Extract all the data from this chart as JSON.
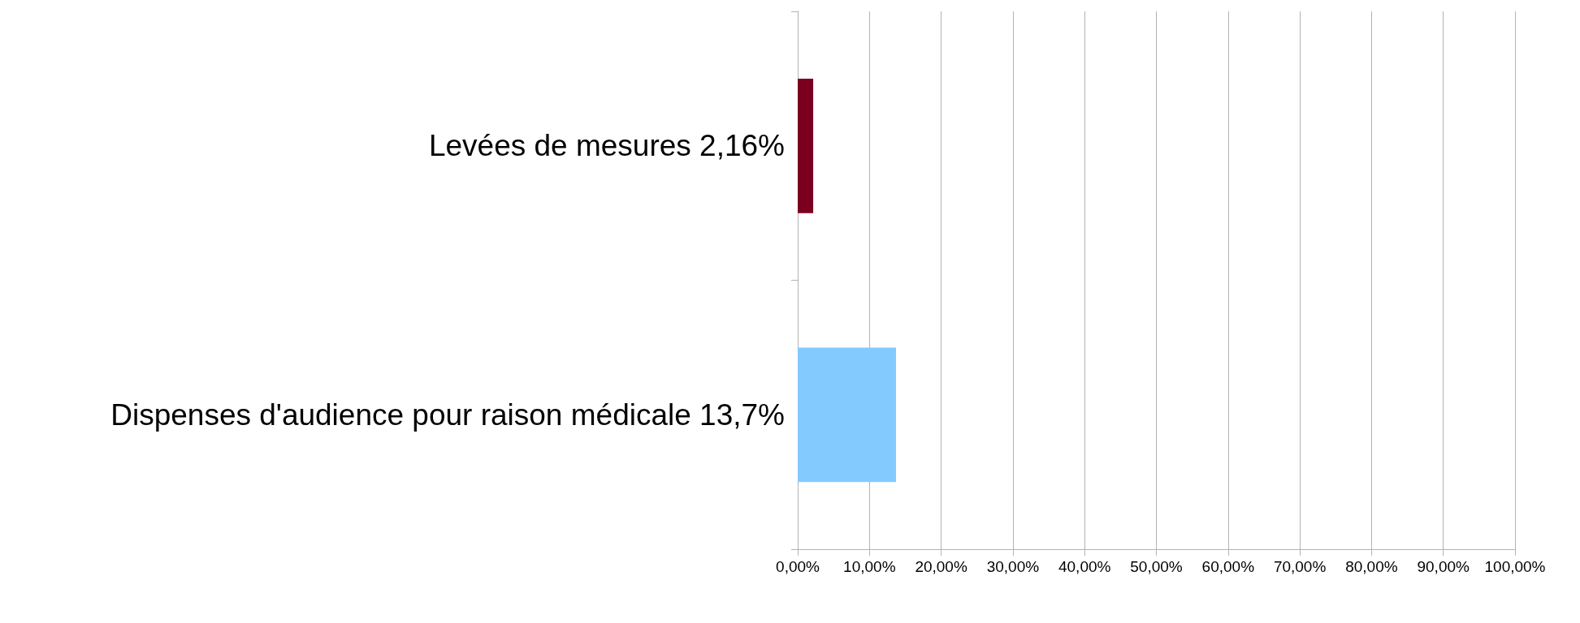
{
  "chart_data": {
    "type": "bar",
    "orientation": "horizontal",
    "categories": [
      "Levées de mesures 2,16%",
      "Dispenses d'audience pour raison médicale 13,7%"
    ],
    "values": [
      2.16,
      13.7
    ],
    "colors": [
      "#7b0020",
      "#83caff"
    ],
    "xlim": [
      0,
      100
    ],
    "xticks": [
      {
        "value": 0,
        "label": "0,00%"
      },
      {
        "value": 10,
        "label": "10,00%"
      },
      {
        "value": 20,
        "label": "20,00%"
      },
      {
        "value": 30,
        "label": "30,00%"
      },
      {
        "value": 40,
        "label": "40,00%"
      },
      {
        "value": 50,
        "label": "50,00%"
      },
      {
        "value": 60,
        "label": "60,00%"
      },
      {
        "value": 70,
        "label": "70,00%"
      },
      {
        "value": 80,
        "label": "80,00%"
      },
      {
        "value": 90,
        "label": "90,00%"
      },
      {
        "value": 100,
        "label": "100,00%"
      }
    ],
    "grid": "x"
  }
}
